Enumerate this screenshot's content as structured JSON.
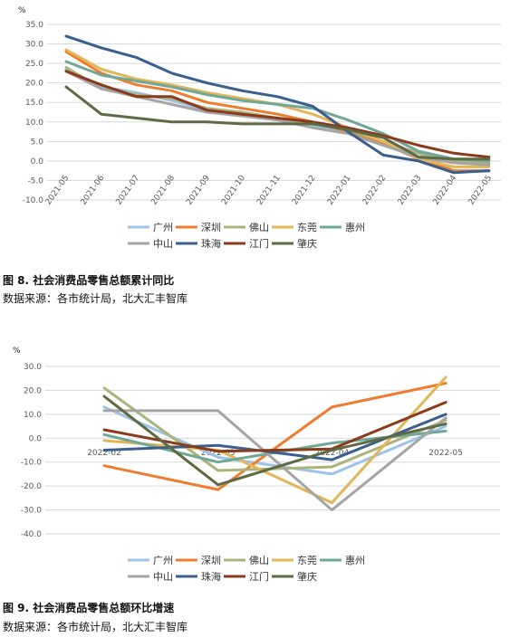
{
  "series_style": [
    {
      "color": "#9dc3e6"
    },
    {
      "color": "#ed7d31"
    },
    {
      "color": "#a9b57b"
    },
    {
      "color": "#e2b659"
    },
    {
      "color": "#70a898"
    },
    {
      "color": "#a5a5a5"
    },
    {
      "color": "#3a5f8f"
    },
    {
      "color": "#8b3a1c"
    },
    {
      "color": "#5e6a43"
    }
  ],
  "chart_data": [
    {
      "type": "line",
      "title": "图 8.  社会消费品零售总额累计同比",
      "source": "数据来源：各市统计局，北大汇丰智库",
      "unit": "%",
      "ylim": [
        -10,
        35
      ],
      "y_ticks": [
        "35.0",
        "30.0",
        "25.0",
        "20.0",
        "15.0",
        "10.0",
        "5.0",
        "0.0",
        "-5.0",
        "-10.0"
      ],
      "categories": [
        "2021-05",
        "2021-06",
        "2021-07",
        "2021-08",
        "2021-09",
        "2021-10",
        "2021-11",
        "2021-12",
        "2022-01",
        "2022-02",
        "2022-03",
        "2022-04",
        "2022-05"
      ],
      "grid": true,
      "legend": "bottom",
      "series": [
        {
          "name": "广州",
          "values": [
            23.5,
            19.0,
            17.5,
            15.5,
            13.0,
            12.0,
            11.0,
            9.0,
            7.5,
            5.0,
            2.0,
            -2.5,
            -2.5
          ]
        },
        {
          "name": "深圳",
          "values": [
            28.0,
            22.5,
            19.5,
            18.0,
            15.0,
            13.5,
            12.0,
            10.0,
            7.5,
            4.5,
            0.5,
            -2.5,
            -2.5
          ]
        },
        {
          "name": "佛山",
          "values": [
            24.0,
            18.5,
            17.0,
            16.0,
            13.5,
            12.5,
            11.0,
            9.5,
            8.0,
            5.0,
            2.0,
            0.0,
            -0.5
          ]
        },
        {
          "name": "东莞",
          "values": [
            28.5,
            23.5,
            21.0,
            19.5,
            17.5,
            16.0,
            14.5,
            12.0,
            8.5,
            5.0,
            0.5,
            -1.5,
            -1.5
          ]
        },
        {
          "name": "惠州",
          "values": [
            25.5,
            22.0,
            20.5,
            19.0,
            17.0,
            15.5,
            14.5,
            13.5,
            10.5,
            7.0,
            2.5,
            0.5,
            0.0
          ]
        },
        {
          "name": "中山",
          "values": [
            23.0,
            18.5,
            16.5,
            14.5,
            12.5,
            11.5,
            10.5,
            8.5,
            7.0,
            4.0,
            1.0,
            -0.5,
            -1.0
          ]
        },
        {
          "name": "珠海",
          "values": [
            32.0,
            29.0,
            26.5,
            22.5,
            20.0,
            18.0,
            16.5,
            14.0,
            7.5,
            1.5,
            0.0,
            -3.0,
            -2.5
          ]
        },
        {
          "name": "江门",
          "values": [
            23.0,
            19.5,
            16.5,
            16.5,
            13.0,
            12.0,
            11.0,
            10.0,
            8.5,
            6.5,
            4.0,
            2.0,
            1.0
          ]
        },
        {
          "name": "肇庆",
          "values": [
            19.0,
            12.0,
            11.0,
            10.0,
            10.0,
            9.5,
            9.5,
            9.5,
            8.0,
            6.0,
            1.0,
            0.5,
            0.5
          ]
        }
      ]
    },
    {
      "type": "line",
      "title": "图 9.  社会消费品零售总额环比增速",
      "source": "数据来源：各市统计局，北大汇丰智库",
      "unit": "%",
      "ylim": [
        -40,
        30
      ],
      "y_ticks": [
        "30.0",
        "20.0",
        "10.0",
        "0.0",
        "-10.0",
        "-20.0",
        "-30.0",
        "-40.0"
      ],
      "categories": [
        "2022-02",
        "2022-03",
        "2022-04",
        "2022-05"
      ],
      "grid": true,
      "legend": "bottom",
      "series": [
        {
          "name": "广州",
          "values": [
            13.0,
            -8.0,
            -15.0,
            5.0
          ]
        },
        {
          "name": "深圳",
          "values": [
            -11.5,
            -21.5,
            13.0,
            23.0
          ]
        },
        {
          "name": "佛山",
          "values": [
            21.0,
            -13.5,
            -12.0,
            7.5
          ]
        },
        {
          "name": "东莞",
          "values": [
            -1.0,
            -5.0,
            -27.0,
            25.5
          ]
        },
        {
          "name": "惠州",
          "values": [
            1.5,
            -10.0,
            -2.0,
            3.0
          ]
        },
        {
          "name": "中山",
          "values": [
            11.5,
            11.5,
            -30.0,
            8.5
          ]
        },
        {
          "name": "珠海",
          "values": [
            -5.0,
            -3.0,
            -9.0,
            10.0
          ]
        },
        {
          "name": "江门",
          "values": [
            3.5,
            -5.5,
            -4.5,
            15.0
          ]
        },
        {
          "name": "肇庆",
          "values": [
            17.5,
            -19.5,
            -5.0,
            6.0
          ]
        }
      ]
    }
  ]
}
